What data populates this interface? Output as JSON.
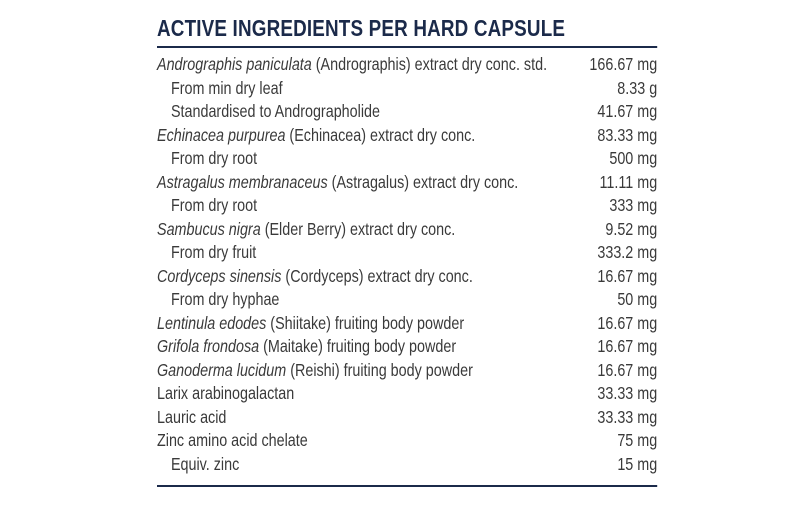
{
  "title": "ACTIVE INGREDIENTS PER HARD CAPSULE",
  "colors": {
    "heading": "#1b2a4a",
    "text": "#3a3a3a",
    "rule": "#1b2a4a"
  },
  "rows": [
    {
      "italic": "Andrographis paniculata",
      "text": " (Andrographis) extract dry conc. std.",
      "amount": "166.67 mg",
      "indent": false
    },
    {
      "italic": "",
      "text": "From min dry leaf",
      "amount": "8.33 g",
      "indent": true
    },
    {
      "italic": "",
      "text": "Standardised to Andrographolide",
      "amount": "41.67 mg",
      "indent": true
    },
    {
      "italic": "Echinacea purpurea",
      "text": " (Echinacea) extract dry conc.",
      "amount": "83.33 mg",
      "indent": false
    },
    {
      "italic": "",
      "text": "From dry root",
      "amount": "500 mg",
      "indent": true
    },
    {
      "italic": "Astragalus membranaceus",
      "text": " (Astragalus) extract dry conc.",
      "amount": "11.11 mg",
      "indent": false
    },
    {
      "italic": "",
      "text": "From dry root",
      "amount": "333 mg",
      "indent": true
    },
    {
      "italic": "Sambucus nigra",
      "text": " (Elder Berry) extract dry conc.",
      "amount": "9.52 mg",
      "indent": false
    },
    {
      "italic": "",
      "text": "From dry fruit",
      "amount": "333.2 mg",
      "indent": true
    },
    {
      "italic": "Cordyceps sinensis",
      "text": " (Cordyceps) extract dry conc.",
      "amount": "16.67 mg",
      "indent": false
    },
    {
      "italic": "",
      "text": "From dry hyphae",
      "amount": "50 mg",
      "indent": true
    },
    {
      "italic": "Lentinula edodes",
      "text": " (Shiitake) fruiting body powder",
      "amount": "16.67 mg",
      "indent": false
    },
    {
      "italic": "Grifola frondosa",
      "text": " (Maitake) fruiting body powder",
      "amount": "16.67 mg",
      "indent": false
    },
    {
      "italic": "Ganoderma lucidum",
      "text": " (Reishi) fruiting body powder",
      "amount": "16.67 mg",
      "indent": false
    },
    {
      "italic": "",
      "text": "Larix arabinogalactan",
      "amount": "33.33 mg",
      "indent": false
    },
    {
      "italic": "",
      "text": "Lauric acid",
      "amount": "33.33 mg",
      "indent": false
    },
    {
      "italic": "",
      "text": "Zinc amino acid chelate",
      "amount": "75 mg",
      "indent": false
    },
    {
      "italic": "",
      "text": "Equiv. zinc",
      "amount": "15 mg",
      "indent": true
    }
  ]
}
